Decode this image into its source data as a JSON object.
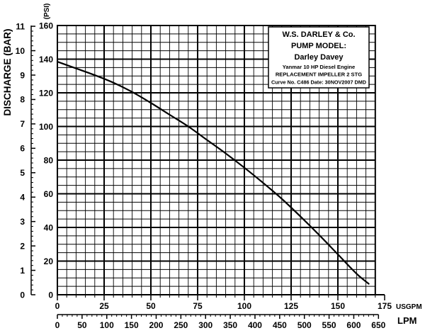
{
  "chart_data": {
    "type": "line",
    "title_box": {
      "company": "W.S. DARLEY & Co.",
      "model_label": "PUMP MODEL:",
      "model": "Darley Davey",
      "engine": "Yanmar 10 HP Diesel Engine",
      "impeller": "REPLACEMENT IMPELLER 2 STG",
      "curve_info": "Curve No. C486 Date: 30NOV2007 DMD"
    },
    "y_axes": [
      {
        "label": "DISCHARGE (BAR)",
        "ticks": [
          0,
          1,
          2,
          3,
          4,
          5,
          6,
          7,
          8,
          9,
          10,
          11
        ],
        "range": [
          0,
          11
        ]
      },
      {
        "label": "(PSI)",
        "ticks": [
          0,
          20,
          40,
          60,
          80,
          100,
          120,
          140,
          160
        ],
        "range": [
          0,
          160
        ]
      }
    ],
    "x_axes": [
      {
        "label": "USGPM",
        "ticks": [
          0,
          25,
          50,
          75,
          100,
          125,
          150,
          175
        ],
        "range": [
          0,
          175
        ]
      },
      {
        "label": "LPM",
        "ticks": [
          0,
          50,
          100,
          150,
          200,
          250,
          300,
          350,
          400,
          450,
          500,
          550,
          600,
          650
        ],
        "range": [
          0,
          650
        ]
      }
    ],
    "grid": true,
    "series": [
      {
        "x": [
          0,
          10,
          20,
          30,
          40,
          50,
          60,
          70,
          80,
          90,
          100,
          110,
          120,
          130,
          140,
          150,
          160,
          166.5
        ],
        "y": [
          138.5,
          134.5,
          130.5,
          126,
          120.5,
          114,
          107,
          100,
          92,
          84,
          75.5,
          66.5,
          57,
          46.5,
          35.5,
          24,
          12.5,
          6.5
        ]
      }
    ]
  }
}
